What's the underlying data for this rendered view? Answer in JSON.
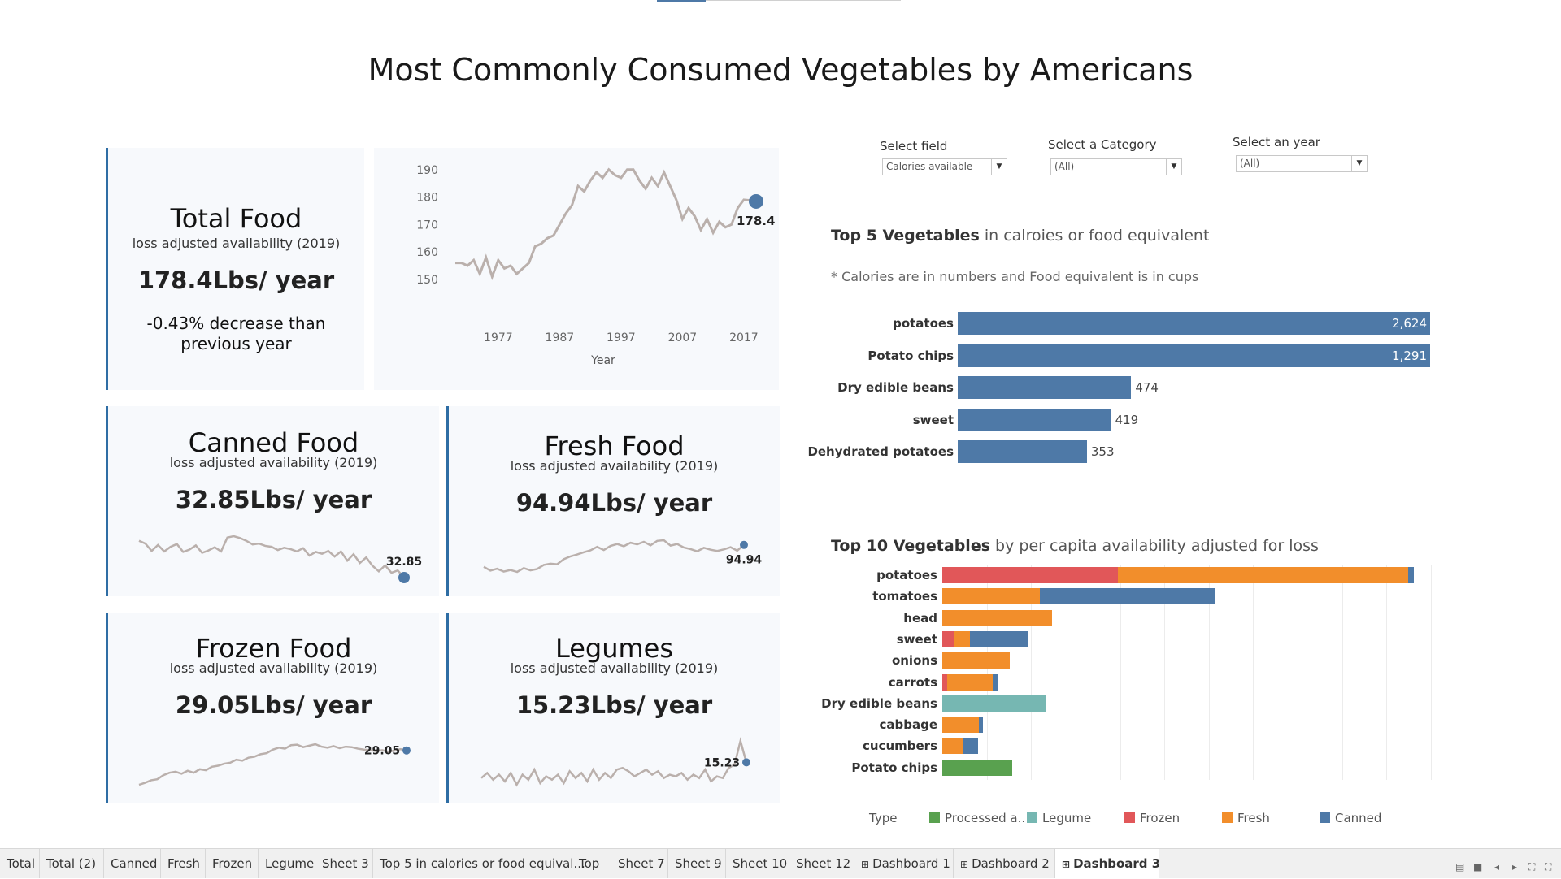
{
  "dashboard_title": "Most Commonly Consumed Vegetables by Americans",
  "total_card": {
    "title": "Total Food",
    "subtitle": "loss adjusted availability (2019)",
    "value": "178.4Lbs/ year",
    "change_line1": "-0.43% decrease than",
    "change_line2": "previous year"
  },
  "canned_card": {
    "title": "Canned Food",
    "subtitle": "loss adjusted availability (2019)",
    "value": "32.85Lbs/ year",
    "spark_label": "32.85"
  },
  "fresh_card": {
    "title": "Fresh Food",
    "subtitle": "loss adjusted availability (2019)",
    "value": "94.94Lbs/ year",
    "spark_label": "94.94"
  },
  "frozen_card": {
    "title": "Frozen Food",
    "subtitle": "loss adjusted availability (2019)",
    "value": "29.05Lbs/ year",
    "spark_label": "29.05"
  },
  "legume_card": {
    "title": "Legumes",
    "subtitle": "loss adjusted availability (2019)",
    "value": "15.23Lbs/ year",
    "spark_label": "15.23"
  },
  "filters": {
    "field": {
      "label": "Select field",
      "value": "Calories available"
    },
    "category": {
      "label": "Select a Category",
      "value": "(All)"
    },
    "year": {
      "label": "Select an year",
      "value": "(All)"
    }
  },
  "top5": {
    "title_bold": "Top 5 Vegetables",
    "title_rest": " in calroies or food equivalent",
    "note_star": "*",
    "note": " Calories are in numbers and Food equivalent is in cups"
  },
  "top10": {
    "title_bold": "Top 10 Vegetables",
    "title_rest": " by per capita availability adjusted for loss"
  },
  "tabs": [
    {
      "label": "Total",
      "icon": ""
    },
    {
      "label": "Total (2)",
      "icon": ""
    },
    {
      "label": "Canned",
      "icon": ""
    },
    {
      "label": "Fresh",
      "icon": ""
    },
    {
      "label": "Frozen",
      "icon": ""
    },
    {
      "label": "Legume",
      "icon": ""
    },
    {
      "label": "Sheet 3",
      "icon": ""
    },
    {
      "label": "Top 5 in calories or food equival...",
      "icon": ""
    },
    {
      "label": "Top",
      "icon": ""
    },
    {
      "label": "Sheet 7",
      "icon": ""
    },
    {
      "label": "Sheet 9",
      "icon": ""
    },
    {
      "label": "Sheet 10",
      "icon": ""
    },
    {
      "label": "Sheet 12",
      "icon": ""
    },
    {
      "label": "Dashboard 1",
      "icon": "grid-icon"
    },
    {
      "label": "Dashboard 2",
      "icon": "grid-icon"
    },
    {
      "label": "Dashboard 3",
      "icon": "grid-icon",
      "active": true
    }
  ],
  "colors": {
    "accent": "#2e6da4",
    "line": "#bab0ac",
    "canned": "#4e79a7",
    "fresh": "#f28e2b",
    "frozen": "#e15759",
    "legume": "#76b7b2",
    "processed": "#59a14f"
  },
  "chart_data": [
    {
      "type": "line",
      "id": "total-trend",
      "xlabel": "Year",
      "ylabel": "",
      "x_ticks": [
        1977,
        1987,
        1997,
        2007,
        2017
      ],
      "y_ticks": [
        150,
        160,
        170,
        180,
        190
      ],
      "ylim": [
        147,
        192
      ],
      "x": [
        1970,
        1971,
        1972,
        1973,
        1974,
        1975,
        1976,
        1977,
        1978,
        1979,
        1980,
        1981,
        1982,
        1983,
        1984,
        1985,
        1986,
        1987,
        1988,
        1989,
        1990,
        1991,
        1992,
        1993,
        1994,
        1995,
        1996,
        1997,
        1998,
        1999,
        2000,
        2001,
        2002,
        2003,
        2004,
        2005,
        2006,
        2007,
        2008,
        2009,
        2010,
        2011,
        2012,
        2013,
        2014,
        2015,
        2016,
        2017,
        2018,
        2019
      ],
      "y": [
        156,
        156,
        155,
        157,
        152,
        158,
        151,
        157,
        154,
        155,
        152,
        154,
        156,
        162,
        163,
        165,
        166,
        170,
        174,
        177,
        184,
        182,
        186,
        189,
        187,
        190,
        188,
        187,
        190,
        190,
        186,
        183,
        187,
        184,
        189,
        184,
        179,
        172,
        176,
        173,
        168,
        172,
        167,
        171,
        169,
        170,
        176,
        179,
        178.8,
        178.4
      ],
      "highlight": {
        "x": 2019,
        "y": 178.4,
        "label": "178.4"
      }
    },
    {
      "type": "line",
      "id": "canned-trend",
      "y": [
        40.8,
        40.2,
        38.6,
        39.9,
        38.5,
        39.5,
        40.1,
        38.4,
        38.9,
        39.8,
        38.2,
        38.7,
        39.4,
        38.5,
        41.5,
        41.8,
        41.4,
        40.8,
        40.0,
        40.2,
        39.7,
        39.5,
        38.8,
        39.3,
        39.0,
        38.5,
        39.2,
        37.6,
        38.4,
        38.0,
        38.6,
        37.4,
        38.5,
        36.5,
        37.9,
        36.0,
        37.2,
        35.4,
        34.2,
        35.5,
        33.9,
        34.4,
        32.85
      ],
      "highlight": {
        "value": 32.85,
        "label": "32.85"
      }
    },
    {
      "type": "line",
      "id": "fresh-trend",
      "y": [
        88.0,
        86.8,
        87.4,
        86.5,
        87.0,
        86.4,
        87.6,
        86.9,
        87.3,
        88.6,
        89.0,
        88.8,
        90.4,
        91.3,
        91.9,
        92.6,
        93.2,
        94.3,
        93.3,
        94.6,
        95.2,
        94.5,
        95.6,
        95.1,
        95.9,
        94.8,
        96.2,
        96.4,
        94.7,
        95.2,
        94.1,
        93.6,
        92.9,
        94.0,
        93.4,
        93.0,
        93.5,
        94.2,
        93.1,
        94.94
      ],
      "highlight": {
        "value": 94.94,
        "label": "94.94"
      }
    },
    {
      "type": "line",
      "id": "frozen-trend",
      "y": [
        22.2,
        22.6,
        23.1,
        23.3,
        24.1,
        24.6,
        24.8,
        24.4,
        25.0,
        24.6,
        25.3,
        25.1,
        25.8,
        26.0,
        26.4,
        26.6,
        27.2,
        27.0,
        27.6,
        27.8,
        28.3,
        28.5,
        29.2,
        29.6,
        29.4,
        30.1,
        30.2,
        29.7,
        30.0,
        30.3,
        29.8,
        29.6,
        29.9,
        29.5,
        29.8,
        29.7,
        29.4,
        29.2,
        29.1,
        28.9,
        29.1,
        28.8,
        29.0,
        29.3,
        29.05
      ],
      "highlight": {
        "value": 29.05,
        "label": "29.05"
      }
    },
    {
      "type": "line",
      "id": "legume-trend",
      "y": [
        14.3,
        14.6,
        14.2,
        14.5,
        14.1,
        14.6,
        13.9,
        14.5,
        14.2,
        14.8,
        14.0,
        14.4,
        14.2,
        14.5,
        14.0,
        14.7,
        14.3,
        14.6,
        14.1,
        14.8,
        14.2,
        14.6,
        14.3,
        14.8,
        14.9,
        14.7,
        14.4,
        14.6,
        14.8,
        14.5,
        14.7,
        14.3,
        14.5,
        14.4,
        14.6,
        14.2,
        14.5,
        14.3,
        14.8,
        14.1,
        14.4,
        14.3,
        14.9,
        15.1,
        16.5,
        15.23
      ],
      "highlight": {
        "value": 15.23,
        "label": "15.23"
      }
    },
    {
      "type": "bar",
      "id": "top5-bar",
      "orientation": "horizontal",
      "categories": [
        "potatoes",
        "Potato chips",
        "Dry edible beans",
        "sweet",
        "Dehydrated potatoes"
      ],
      "values": [
        2624,
        1291,
        474,
        419,
        353
      ],
      "value_labels": [
        "2,624",
        "1,291",
        "474",
        "419",
        "353"
      ],
      "xlim": [
        0,
        1291
      ]
    },
    {
      "type": "bar",
      "id": "top10-stacked",
      "orientation": "horizontal",
      "stacked": true,
      "categories": [
        "potatoes",
        "tomatoes",
        "head",
        "sweet",
        "onions",
        "carrots",
        "Dry edible beans",
        "cabbage",
        "cucumbers",
        "Potato chips"
      ],
      "legend_title": "Type",
      "legend_position": "bottom",
      "series": [
        {
          "name": "Processed a..",
          "color": "#59a14f",
          "values": [
            0,
            0,
            0,
            0,
            0,
            0,
            0,
            0,
            0,
            15.8
          ]
        },
        {
          "name": "Legume",
          "color": "#76b7b2",
          "values": [
            0,
            0,
            0,
            0,
            0,
            0,
            23.2,
            0,
            0,
            0
          ]
        },
        {
          "name": "Frozen",
          "color": "#e15759",
          "values": [
            39.6,
            0,
            0,
            2.7,
            0,
            1.1,
            0,
            0,
            0,
            0
          ]
        },
        {
          "name": "Fresh",
          "color": "#f28e2b",
          "values": [
            65.2,
            21.9,
            24.7,
            3.5,
            15.1,
            10.2,
            0,
            8.2,
            4.6,
            0
          ]
        },
        {
          "name": "Canned",
          "color": "#4e79a7",
          "values": [
            1.4,
            39.6,
            0,
            13.2,
            0,
            1.2,
            0,
            1.0,
            3.5,
            0
          ]
        }
      ],
      "xlim": [
        0,
        110
      ],
      "grid": true
    }
  ]
}
